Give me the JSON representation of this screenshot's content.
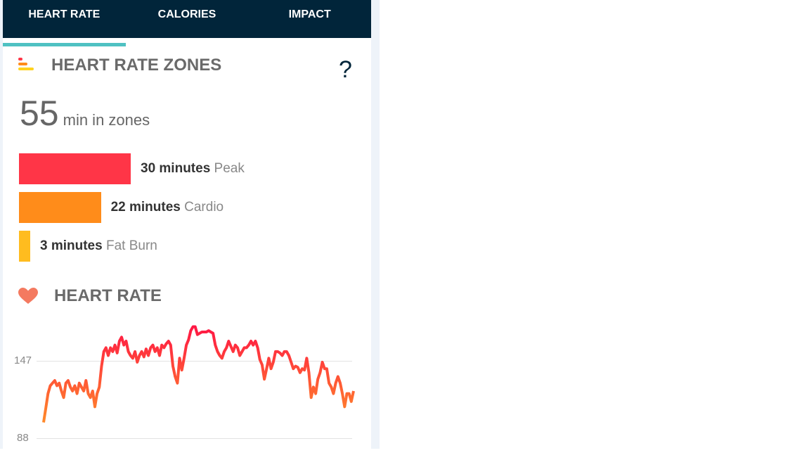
{
  "tabs": [
    {
      "label": "HEART RATE",
      "active": true
    },
    {
      "label": "CALORIES"
    },
    {
      "label": "IMPACT"
    }
  ],
  "zones_section": {
    "title": "HEART RATE ZONES",
    "help": "?",
    "total": "55",
    "total_unit": "min in zones",
    "zones": [
      {
        "minutes": 30,
        "minutes_label": "30 minutes",
        "name": "Peak",
        "color": "#ff3547"
      },
      {
        "minutes": 22,
        "minutes_label": "22 minutes",
        "name": "Cardio",
        "color": "#ff8c1a"
      },
      {
        "minutes": 3,
        "minutes_label": "3 minutes",
        "name": "Fat Burn",
        "color": "#ffbc1f"
      }
    ]
  },
  "heart_rate_section": {
    "title": "HEART RATE",
    "icon": "heart-icon",
    "icon_color": "#f47a60"
  },
  "chart_data": {
    "type": "line",
    "ylabel": "",
    "yticks": [
      88,
      147
    ],
    "ylim": [
      88,
      173
    ],
    "grid": true,
    "colors": {
      "high": "#ff1744",
      "low": "#ff8a2a"
    },
    "values": [
      100,
      111,
      122,
      128,
      130,
      132,
      128,
      130,
      124,
      119,
      130,
      132,
      127,
      124,
      128,
      122,
      130,
      127,
      124,
      132,
      122,
      119,
      124,
      112,
      122,
      127,
      143,
      154,
      157,
      151,
      157,
      154,
      159,
      153,
      162,
      165,
      159,
      162,
      154,
      151,
      149,
      154,
      146,
      151,
      154,
      150,
      156,
      151,
      157,
      159,
      154,
      157,
      151,
      159,
      157,
      160,
      162,
      159,
      143,
      135,
      130,
      149,
      140,
      149,
      159,
      163,
      170,
      173,
      173,
      167,
      168,
      169,
      169,
      169,
      170,
      169,
      168,
      159,
      154,
      151,
      149,
      154,
      157,
      162,
      158,
      154,
      159,
      157,
      151,
      154,
      157,
      157,
      159,
      162,
      159,
      162,
      157,
      148,
      144,
      133,
      141,
      149,
      141,
      146,
      154,
      154,
      153,
      151,
      154,
      154,
      151,
      146,
      141,
      143,
      142,
      138,
      141,
      140,
      149,
      138,
      119,
      127,
      122,
      133,
      138,
      146,
      141,
      141,
      130,
      127,
      122,
      130,
      135,
      130,
      122,
      112,
      122,
      122,
      116,
      124
    ]
  }
}
